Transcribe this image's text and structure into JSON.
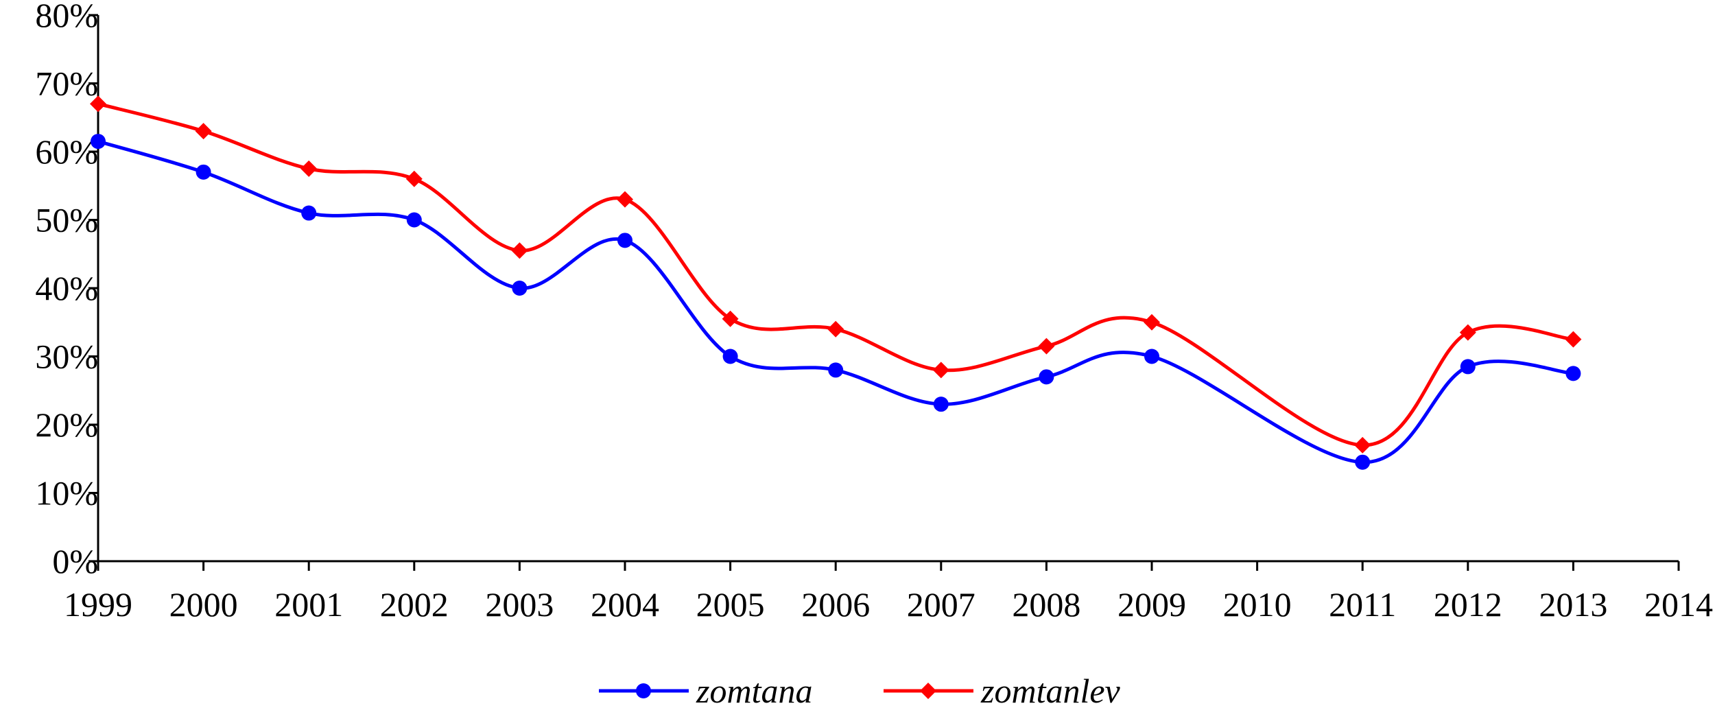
{
  "chart_data": {
    "type": "line",
    "x": [
      1999,
      2000,
      2001,
      2002,
      2003,
      2004,
      2005,
      2006,
      2007,
      2008,
      2009,
      2011,
      2012,
      2013
    ],
    "series": [
      {
        "name": "zomtana",
        "color": "#0000ff",
        "marker": "circle",
        "values": [
          61.5,
          57,
          51,
          50,
          40,
          47,
          30,
          28,
          23,
          27,
          30,
          14.5,
          28.5,
          27.5
        ]
      },
      {
        "name": "zomtanlev",
        "color": "#ff0000",
        "marker": "diamond",
        "values": [
          67,
          63,
          57.5,
          56,
          45.5,
          53,
          35.5,
          34,
          28,
          31.5,
          35,
          17,
          33.5,
          32.5
        ]
      }
    ],
    "xlim": [
      1999,
      2014
    ],
    "xticks": [
      1999,
      2000,
      2001,
      2002,
      2003,
      2004,
      2005,
      2006,
      2007,
      2008,
      2009,
      2010,
      2011,
      2012,
      2013,
      2014
    ],
    "ylim": [
      0,
      80
    ],
    "yticks": [
      {
        "value": 0,
        "label": "0%"
      },
      {
        "value": 10,
        "label": "10%"
      },
      {
        "value": 20,
        "label": "20%"
      },
      {
        "value": 30,
        "label": "30%"
      },
      {
        "value": 40,
        "label": "40%"
      },
      {
        "value": 50,
        "label": "50%"
      },
      {
        "value": 60,
        "label": "60%"
      },
      {
        "value": 70,
        "label": "70%"
      },
      {
        "value": 80,
        "label": "80%"
      }
    ],
    "smooth": true,
    "grid": false,
    "legend": "bottom"
  }
}
